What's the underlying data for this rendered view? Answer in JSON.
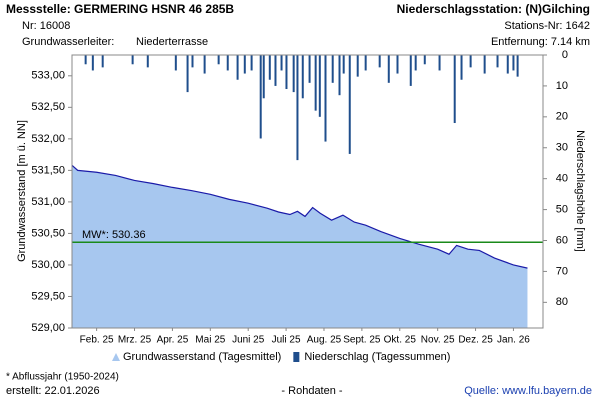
{
  "header": {
    "station": "Messstelle: GERMERING HSNR 46 285B",
    "number": "Nr: 16008",
    "aquifer_label": "Grundwasserleiter:",
    "aquifer": "Niederterrasse",
    "precip_station": "Niederschlagsstation: (N)Gilching",
    "precip_station_number": "Stations-Nr: 1642",
    "distance": "Entfernung: 7.14 km"
  },
  "footer": {
    "note": "* Abflussjahr (1950-2024)",
    "created": "erstellt:  22.01.2026",
    "raw": "- Rohdaten -",
    "source": "Quelle: www.lfu.bayern.de"
  },
  "chart_data": {
    "type": "area",
    "y_label": "Grundwasserstand [m ü. NN]",
    "y2_label": "Niederschlagshöhe [mm]",
    "xlim": [
      -0.15,
      12.28
    ],
    "xticks": [
      {
        "value": 0.5,
        "label": "Feb. 25"
      },
      {
        "value": 1.5,
        "label": "Mrz. 25"
      },
      {
        "value": 2.5,
        "label": "Apr. 25"
      },
      {
        "value": 3.5,
        "label": "Mai 25"
      },
      {
        "value": 4.5,
        "label": "Juni 25"
      },
      {
        "value": 5.5,
        "label": "Juli 25"
      },
      {
        "value": 6.5,
        "label": "Aug. 25"
      },
      {
        "value": 7.5,
        "label": "Sept. 25"
      },
      {
        "value": 8.5,
        "label": "Okt. 25"
      },
      {
        "value": 9.5,
        "label": "Nov. 25"
      },
      {
        "value": 10.5,
        "label": "Dez. 25"
      },
      {
        "value": 11.5,
        "label": "Jan. 26"
      }
    ],
    "ylim": [
      529,
      533.33
    ],
    "yticks": [
      {
        "value": 529,
        "label": "529,00"
      },
      {
        "value": 529.5,
        "label": "529,50"
      },
      {
        "value": 530,
        "label": "530,00"
      },
      {
        "value": 530.5,
        "label": "530,50"
      },
      {
        "value": 531,
        "label": "531,00"
      },
      {
        "value": 531.5,
        "label": "531,50"
      },
      {
        "value": 532,
        "label": "532,00"
      },
      {
        "value": 532.5,
        "label": "532,50"
      },
      {
        "value": 533,
        "label": "533,00"
      }
    ],
    "y2lim": [
      0,
      88.3
    ],
    "y2_inverted": true,
    "y2ticks": [
      0,
      10,
      20,
      30,
      40,
      50,
      60,
      70,
      80
    ],
    "legend": "bottom",
    "mean_line": {
      "value": 530.36,
      "label": "MW*: 530.36",
      "color": "#1a8a1a"
    },
    "series": [
      {
        "name": "Grundwasserstand (Tagesmittel)",
        "type": "area",
        "color": "#a7c7ef",
        "line_color": "#1a1aa8",
        "x": [
          -0.15,
          0,
          0.5,
          1,
          1.5,
          2,
          2.5,
          3,
          3.5,
          4,
          4.5,
          5,
          5.3,
          5.6,
          5.8,
          6.0,
          6.2,
          6.4,
          6.7,
          7.0,
          7.3,
          7.6,
          8.0,
          8.5,
          9.0,
          9.5,
          9.8,
          10.0,
          10.3,
          10.6,
          11.0,
          11.5,
          11.87
        ],
        "values": [
          531.58,
          531.5,
          531.47,
          531.42,
          531.34,
          531.29,
          531.23,
          531.18,
          531.12,
          531.04,
          530.98,
          530.9,
          530.84,
          530.8,
          530.85,
          530.77,
          530.91,
          530.82,
          530.71,
          530.79,
          530.68,
          530.63,
          530.53,
          530.42,
          530.33,
          530.25,
          530.17,
          530.31,
          530.25,
          530.23,
          530.11,
          530.0,
          529.95
        ]
      },
      {
        "name": "Niederschlag (Tagessummen)",
        "type": "bar",
        "axis": "y2",
        "color": "#1f4e8c",
        "x": [
          0.21,
          0.4,
          0.66,
          1.45,
          1.85,
          2.59,
          2.9,
          3.03,
          3.35,
          3.72,
          3.96,
          4.22,
          4.41,
          4.59,
          4.83,
          4.91,
          5.07,
          5.22,
          5.38,
          5.51,
          5.7,
          5.8,
          5.94,
          6.12,
          6.28,
          6.39,
          6.54,
          6.73,
          6.91,
          7.02,
          7.18,
          7.39,
          7.6,
          7.97,
          8.21,
          8.44,
          8.79,
          8.92,
          9.16,
          9.55,
          9.95,
          10.13,
          10.37,
          10.74,
          11.08,
          11.35,
          11.5,
          11.61
        ],
        "values": [
          3,
          5,
          4,
          3,
          4,
          5,
          12,
          4,
          6,
          3,
          5,
          8,
          6,
          5,
          27,
          14,
          8,
          10,
          5,
          11,
          12,
          34,
          14,
          9,
          18,
          20,
          28,
          9,
          13,
          6,
          32,
          7,
          5,
          4,
          9,
          6,
          10,
          5,
          3,
          5,
          22,
          8,
          4,
          6,
          4,
          6,
          5,
          7
        ]
      }
    ]
  }
}
